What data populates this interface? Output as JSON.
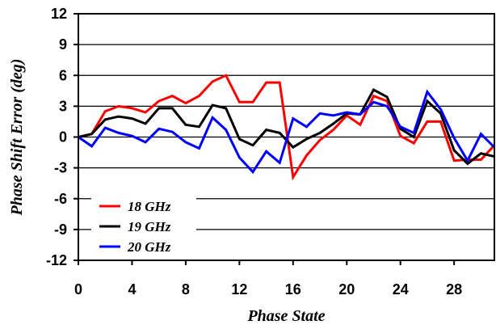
{
  "chart_data": {
    "type": "line",
    "title": "",
    "xlabel": "Phase State",
    "ylabel": "Phase Shift Error (deg)",
    "xlim": [
      0,
      31
    ],
    "ylim": [
      -12,
      12
    ],
    "xticks": [
      0,
      4,
      8,
      12,
      16,
      20,
      24,
      28
    ],
    "xtick_labels": [
      "0",
      "4",
      "8",
      "12",
      "16",
      "20",
      "24",
      "28"
    ],
    "yticks": [
      12,
      9,
      6,
      3,
      0,
      -3,
      -6,
      -9,
      -12
    ],
    "ytick_labels": [
      "12",
      "9",
      "6",
      "3",
      "0",
      "-3",
      "-6",
      "-9",
      "-12"
    ],
    "grid": "horizontal",
    "legend_position": "bottom-left",
    "x": [
      0,
      1,
      2,
      3,
      4,
      5,
      6,
      7,
      8,
      9,
      10,
      11,
      12,
      13,
      14,
      15,
      16,
      17,
      18,
      19,
      20,
      21,
      22,
      23,
      24,
      25,
      26,
      27,
      28,
      29,
      30,
      31
    ],
    "series": [
      {
        "name": "18 GHz",
        "color": "#ff0000",
        "values": [
          0,
          0.3,
          2.5,
          3.0,
          2.8,
          2.4,
          3.5,
          4.0,
          3.3,
          4.0,
          5.4,
          6.0,
          3.4,
          3.4,
          5.3,
          5.3,
          -3.9,
          -1.8,
          -0.3,
          0.7,
          2.1,
          1.2,
          4.0,
          3.5,
          0.1,
          -0.6,
          1.5,
          1.5,
          -2.3,
          -2.2,
          -2.2,
          -0.8
        ]
      },
      {
        "name": "19 GHz",
        "color": "#000000",
        "values": [
          0,
          0.3,
          1.7,
          2.0,
          1.8,
          1.3,
          2.8,
          2.8,
          1.2,
          1.0,
          3.1,
          2.8,
          -0.2,
          -0.8,
          0.7,
          0.4,
          -1.0,
          -0.2,
          0.4,
          1.3,
          2.3,
          2.2,
          4.6,
          3.9,
          0.8,
          0.0,
          3.5,
          2.3,
          -1.3,
          -2.6,
          -1.6,
          -1.9
        ]
      },
      {
        "name": "20 GHz",
        "color": "#0000ff",
        "values": [
          0,
          -0.9,
          0.9,
          0.4,
          0.1,
          -0.5,
          0.8,
          0.5,
          -0.5,
          -1.1,
          1.9,
          0.7,
          -2.0,
          -3.4,
          -1.4,
          -2.5,
          1.8,
          1.0,
          2.3,
          2.1,
          2.4,
          2.2,
          3.4,
          3.0,
          1.0,
          0.4,
          4.4,
          2.7,
          -0.1,
          -2.3,
          0.3,
          -1.0
        ]
      }
    ]
  }
}
